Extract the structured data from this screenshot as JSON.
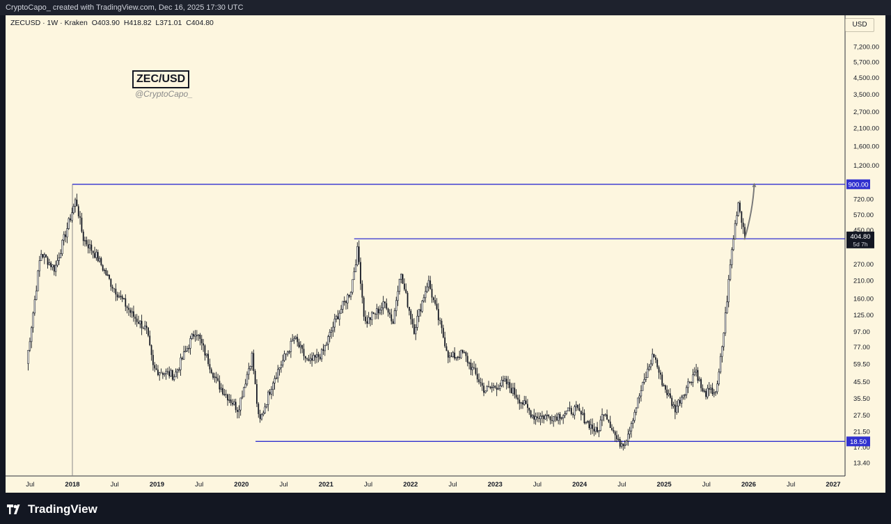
{
  "header": {
    "credit": "CryptoCapo_  created with TradingView.com, Dec 16, 2025 17:30 UTC"
  },
  "symbol": {
    "name": "ZECUSD · 1W · Kraken",
    "open": "O403.90",
    "high": "H418.82",
    "low": "L371.01",
    "close": "C404.80"
  },
  "badge": {
    "title": "ZEC/USD",
    "handle": "@CryptoCapo_"
  },
  "price_axis": {
    "currency": "USD"
  },
  "footer": {
    "logo_text": "TradingView"
  },
  "colors": {
    "background": "#fdf6df",
    "candle": "#131722",
    "level_line": "#2f2fd0",
    "projection": "#7a7a7a",
    "label_bg": "#3131cf"
  },
  "chart_data": {
    "type": "candlestick",
    "interval": "1W",
    "y_scale": "log",
    "ylim": [
      11.5,
      9000
    ],
    "x_tick_labels": [
      "Jul",
      "2018",
      "Jul",
      "2019",
      "Jul",
      "2020",
      "Jul",
      "2021",
      "Jul",
      "2022",
      "Jul",
      "2023",
      "Jul",
      "2024",
      "Jul",
      "2025",
      "Jul",
      "2026",
      "Jul",
      "2027"
    ],
    "x_tick_dates": [
      "2017-07",
      "2018-01",
      "2018-07",
      "2019-01",
      "2019-07",
      "2020-01",
      "2020-07",
      "2021-01",
      "2021-07",
      "2022-01",
      "2022-07",
      "2023-01",
      "2023-07",
      "2024-01",
      "2024-07",
      "2025-01",
      "2025-07",
      "2026-01",
      "2026-07",
      "2027-01"
    ],
    "y_tick_labels": [
      "7,200.00",
      "5,700.00",
      "4,500.00",
      "3,500.00",
      "2,700.00",
      "2,100.00",
      "1,600.00",
      "1,200.00",
      "720.00",
      "570.00",
      "450.00",
      "270.00",
      "210.00",
      "160.00",
      "125.00",
      "97.00",
      "77.00",
      "59.50",
      "45.50",
      "35.50",
      "27.50",
      "21.50",
      "17.00",
      "13.40"
    ],
    "y_tick_values": [
      7200,
      5700,
      4500,
      3500,
      2700,
      2100,
      1600,
      1200,
      720,
      570,
      450,
      270,
      210,
      160,
      125,
      97,
      77,
      59.5,
      45.5,
      35.5,
      27.5,
      21.5,
      17,
      13.4
    ],
    "levels": [
      {
        "label": "900.00",
        "value": 900,
        "from": "2018-01"
      },
      {
        "label": "18.50",
        "value": 18.5,
        "from": "2020-03"
      }
    ],
    "resistance_line": {
      "value": 395,
      "from": "2021-05"
    },
    "current_price": {
      "label": "404.80",
      "countdown": "5d 7h",
      "value": 404.8
    },
    "key_points": [
      {
        "date": "2017-06",
        "price": 60
      },
      {
        "date": "2017-08",
        "price": 320
      },
      {
        "date": "2017-10",
        "price": 250
      },
      {
        "date": "2018-01",
        "price": 720
      },
      {
        "date": "2018-02",
        "price": 400
      },
      {
        "date": "2018-04",
        "price": 300
      },
      {
        "date": "2018-06",
        "price": 200
      },
      {
        "date": "2018-09",
        "price": 125
      },
      {
        "date": "2018-11",
        "price": 100
      },
      {
        "date": "2018-12",
        "price": 55
      },
      {
        "date": "2019-03",
        "price": 50
      },
      {
        "date": "2019-06",
        "price": 100
      },
      {
        "date": "2019-09",
        "price": 45
      },
      {
        "date": "2019-12",
        "price": 30
      },
      {
        "date": "2020-02",
        "price": 68
      },
      {
        "date": "2020-03",
        "price": 24
      },
      {
        "date": "2020-05",
        "price": 47
      },
      {
        "date": "2020-08",
        "price": 88
      },
      {
        "date": "2020-10",
        "price": 60
      },
      {
        "date": "2020-12",
        "price": 70
      },
      {
        "date": "2021-02",
        "price": 120
      },
      {
        "date": "2021-04",
        "price": 180
      },
      {
        "date": "2021-05",
        "price": 340
      },
      {
        "date": "2021-06",
        "price": 110
      },
      {
        "date": "2021-09",
        "price": 150
      },
      {
        "date": "2021-10",
        "price": 110
      },
      {
        "date": "2021-11",
        "price": 240
      },
      {
        "date": "2022-01",
        "price": 100
      },
      {
        "date": "2022-03",
        "price": 210
      },
      {
        "date": "2022-04",
        "price": 140
      },
      {
        "date": "2022-06",
        "price": 65
      },
      {
        "date": "2022-08",
        "price": 70
      },
      {
        "date": "2022-11",
        "price": 40
      },
      {
        "date": "2023-02",
        "price": 45
      },
      {
        "date": "2023-06",
        "price": 27
      },
      {
        "date": "2023-09",
        "price": 27
      },
      {
        "date": "2023-12",
        "price": 30
      },
      {
        "date": "2024-03",
        "price": 21
      },
      {
        "date": "2024-04",
        "price": 30
      },
      {
        "date": "2024-06",
        "price": 18
      },
      {
        "date": "2024-07",
        "price": 18.5
      },
      {
        "date": "2024-09",
        "price": 37
      },
      {
        "date": "2024-11",
        "price": 70
      },
      {
        "date": "2024-12",
        "price": 48
      },
      {
        "date": "2025-02",
        "price": 30
      },
      {
        "date": "2025-05",
        "price": 55
      },
      {
        "date": "2025-06",
        "price": 38
      },
      {
        "date": "2025-08",
        "price": 40
      },
      {
        "date": "2025-09",
        "price": 100
      },
      {
        "date": "2025-10",
        "price": 300
      },
      {
        "date": "2025-11",
        "price": 700
      },
      {
        "date": "2025-12",
        "price": 404.8
      }
    ],
    "projection_path": [
      {
        "date": "2025-12",
        "price": 390
      },
      {
        "date": "2026-01",
        "price": 600
      },
      {
        "date": "2026-01",
        "price": 900
      }
    ]
  }
}
